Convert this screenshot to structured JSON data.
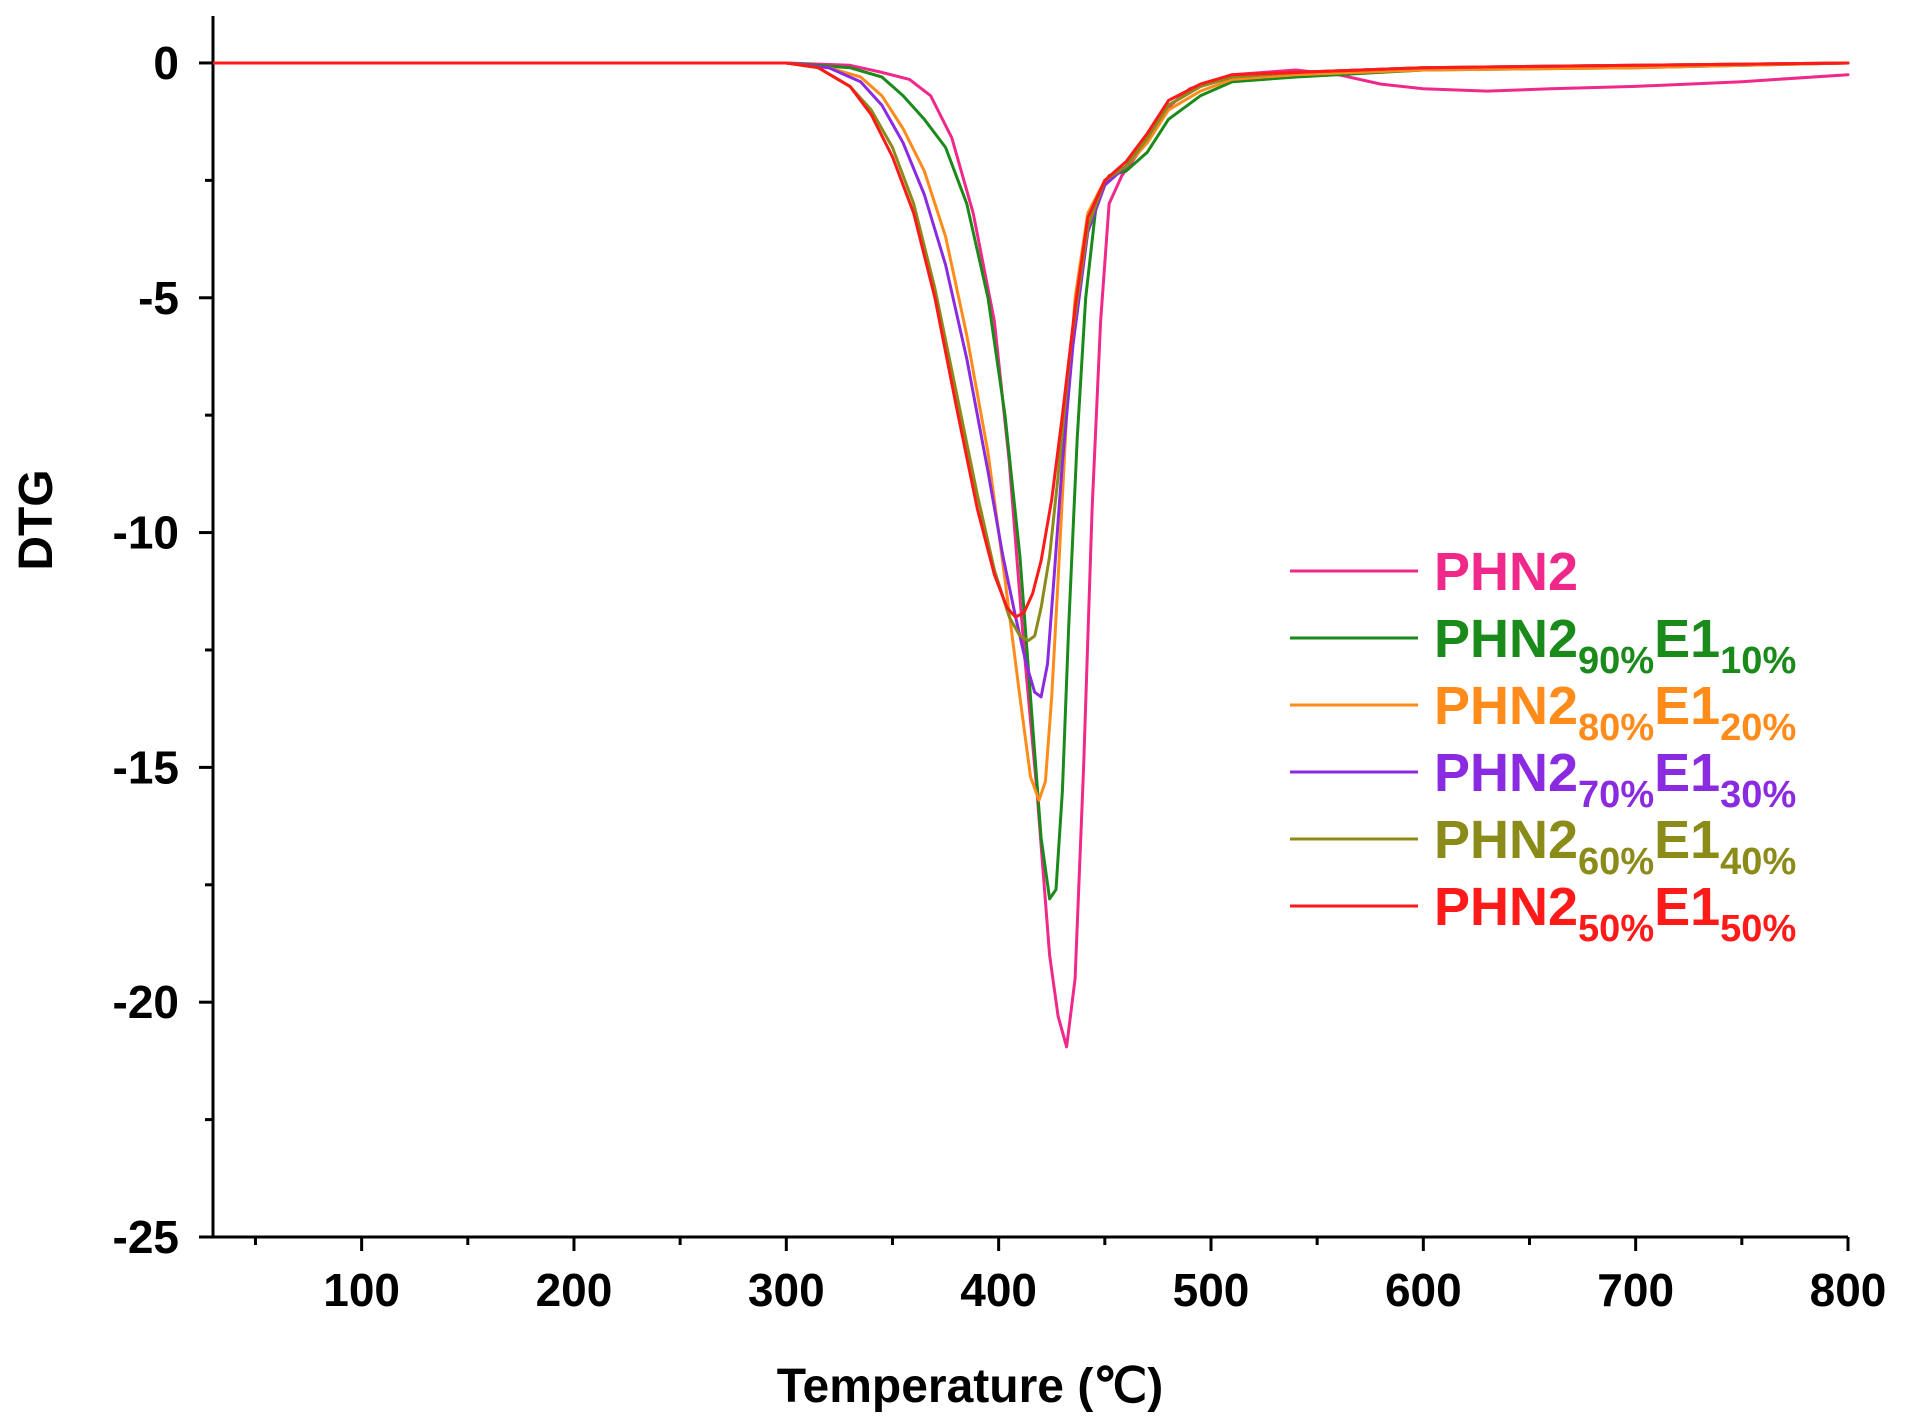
{
  "chart_data": {
    "type": "line",
    "title": "",
    "xlabel": "Temperature (℃)",
    "ylabel": "DTG",
    "xlim": [
      30,
      800
    ],
    "ylim": [
      -25,
      1
    ],
    "x_ticks": [
      100,
      200,
      300,
      400,
      500,
      600,
      700,
      800
    ],
    "y_ticks": [
      0,
      -5,
      -10,
      -15,
      -20,
      -25
    ],
    "grid": false,
    "legend_position": "center-right",
    "series": [
      {
        "name": "PHN2",
        "label_parts": [
          "PHN2"
        ],
        "color": "#f0288a",
        "x": [
          30,
          100,
          200,
          300,
          330,
          345,
          358,
          368,
          378,
          388,
          398,
          405,
          412,
          418,
          424,
          428,
          432,
          436,
          440,
          444,
          448,
          452,
          458,
          466,
          476,
          490,
          510,
          540,
          560,
          580,
          600,
          630,
          660,
          700,
          750,
          800
        ],
        "y": [
          0,
          0,
          0,
          0,
          -0.05,
          -0.2,
          -0.35,
          -0.7,
          -1.6,
          -3.2,
          -5.5,
          -8.5,
          -12.5,
          -15.5,
          -19,
          -20.3,
          -20.95,
          -19.5,
          -15,
          -9.5,
          -5.5,
          -3.0,
          -2.4,
          -1.9,
          -1.1,
          -0.55,
          -0.25,
          -0.15,
          -0.25,
          -0.45,
          -0.55,
          -0.6,
          -0.55,
          -0.5,
          -0.4,
          -0.25
        ]
      },
      {
        "name": "PHN2 90% E1 10%",
        "label_parts": [
          "PHN2",
          "90%",
          "E1",
          "10%"
        ],
        "color": "#1a8a1a",
        "x": [
          30,
          100,
          200,
          300,
          330,
          345,
          355,
          365,
          375,
          385,
          395,
          403,
          410,
          415,
          420,
          424,
          427,
          430,
          433,
          437,
          441,
          446,
          452,
          460,
          470,
          480,
          495,
          510,
          540,
          600,
          700,
          800
        ],
        "y": [
          0,
          0,
          0,
          0,
          -0.1,
          -0.3,
          -0.7,
          -1.2,
          -1.8,
          -3.0,
          -5.0,
          -7.5,
          -10.5,
          -13.5,
          -16.5,
          -17.8,
          -17.6,
          -15.5,
          -12,
          -8,
          -5.0,
          -3.0,
          -2.4,
          -2.3,
          -1.9,
          -1.2,
          -0.7,
          -0.4,
          -0.3,
          -0.15,
          -0.1,
          0
        ]
      },
      {
        "name": "PHN2 80% E1 20%",
        "label_parts": [
          "PHN2",
          "80%",
          "E1",
          "20%"
        ],
        "color": "#ff8c1a",
        "x": [
          30,
          100,
          200,
          300,
          320,
          335,
          345,
          355,
          365,
          375,
          385,
          395,
          403,
          410,
          415,
          419,
          422,
          425,
          428,
          432,
          436,
          442,
          450,
          460,
          470,
          480,
          495,
          510,
          540,
          600,
          700,
          800
        ],
        "y": [
          0,
          0,
          0,
          0,
          -0.1,
          -0.3,
          -0.7,
          -1.4,
          -2.3,
          -3.7,
          -5.8,
          -8.3,
          -11,
          -13.5,
          -15.2,
          -15.7,
          -15.3,
          -13.5,
          -11,
          -7.5,
          -5.0,
          -3.2,
          -2.5,
          -2.2,
          -1.7,
          -1.0,
          -0.6,
          -0.35,
          -0.25,
          -0.15,
          -0.1,
          0
        ]
      },
      {
        "name": "PHN2 70% E1 30%",
        "label_parts": [
          "PHN2",
          "70%",
          "E1",
          "30%"
        ],
        "color": "#8a2be2",
        "x": [
          30,
          100,
          200,
          300,
          320,
          335,
          345,
          355,
          365,
          375,
          385,
          395,
          402,
          408,
          413,
          417,
          420,
          423,
          426,
          430,
          435,
          442,
          450,
          460,
          470,
          480,
          495,
          510,
          540,
          600,
          700,
          800
        ],
        "y": [
          0,
          0,
          0,
          0,
          -0.1,
          -0.4,
          -0.9,
          -1.7,
          -2.8,
          -4.3,
          -6.3,
          -8.7,
          -10.5,
          -11.8,
          -12.8,
          -13.4,
          -13.5,
          -12.8,
          -11,
          -8.5,
          -6.0,
          -3.6,
          -2.6,
          -2.2,
          -1.6,
          -0.9,
          -0.5,
          -0.3,
          -0.2,
          -0.1,
          -0.05,
          0
        ]
      },
      {
        "name": "PHN2 60% E1 40%",
        "label_parts": [
          "PHN2",
          "60%",
          "E1",
          "40%"
        ],
        "color": "#8b8b1a",
        "x": [
          30,
          100,
          200,
          300,
          315,
          330,
          340,
          350,
          360,
          370,
          380,
          390,
          398,
          405,
          410,
          414,
          417,
          420,
          424,
          428,
          434,
          442,
          450,
          460,
          470,
          480,
          495,
          510,
          540,
          600,
          700,
          800
        ],
        "y": [
          0,
          0,
          0,
          0,
          -0.1,
          -0.5,
          -1.0,
          -1.8,
          -3.0,
          -4.8,
          -7.0,
          -9.2,
          -10.8,
          -11.8,
          -12.2,
          -12.3,
          -12.2,
          -11.6,
          -10.5,
          -8.8,
          -6.0,
          -3.5,
          -2.5,
          -2.2,
          -1.6,
          -0.9,
          -0.5,
          -0.3,
          -0.2,
          -0.1,
          -0.05,
          0
        ]
      },
      {
        "name": "PHN2 50% E1 50%",
        "label_parts": [
          "PHN2",
          "50%",
          "E1",
          "50%"
        ],
        "color": "#ff1a1a",
        "x": [
          30,
          100,
          200,
          300,
          315,
          330,
          340,
          350,
          360,
          370,
          380,
          390,
          398,
          404,
          408,
          412,
          416,
          420,
          425,
          430,
          436,
          442,
          450,
          460,
          470,
          480,
          495,
          510,
          540,
          600,
          700,
          800
        ],
        "y": [
          0,
          0,
          0,
          0,
          -0.1,
          -0.5,
          -1.1,
          -2.0,
          -3.2,
          -5.0,
          -7.3,
          -9.5,
          -10.9,
          -11.6,
          -11.8,
          -11.7,
          -11.3,
          -10.6,
          -9.3,
          -7.5,
          -5.2,
          -3.3,
          -2.5,
          -2.1,
          -1.5,
          -0.8,
          -0.45,
          -0.25,
          -0.2,
          -0.1,
          -0.05,
          0
        ]
      }
    ]
  }
}
